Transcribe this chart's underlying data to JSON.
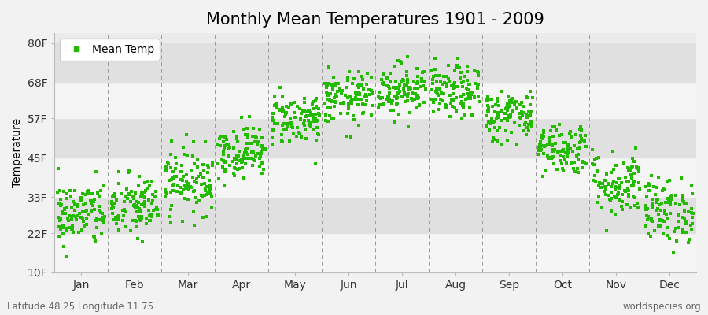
{
  "title": "Monthly Mean Temperatures 1901 - 2009",
  "ylabel": "Temperature",
  "xlabel_months": [
    "Jan",
    "Feb",
    "Mar",
    "Apr",
    "May",
    "Jun",
    "Jul",
    "Aug",
    "Sep",
    "Oct",
    "Nov",
    "Dec"
  ],
  "ytick_labels": [
    "10F",
    "22F",
    "33F",
    "45F",
    "57F",
    "68F",
    "80F"
  ],
  "ytick_values": [
    10,
    22,
    33,
    45,
    57,
    68,
    80
  ],
  "ylim": [
    10,
    83
  ],
  "dot_color": "#22bb00",
  "dot_size": 6,
  "background_color": "#f2f2f2",
  "plot_bg_color": "#ebebeb",
  "band_color_light": "#f5f5f5",
  "band_color_dark": "#e0e0e0",
  "legend_label": "Mean Temp",
  "footer_left": "Latitude 48.25 Longitude 11.75",
  "footer_right": "worldspecies.org",
  "title_fontsize": 15,
  "axis_fontsize": 10,
  "footer_fontsize": 8.5,
  "n_years": 109,
  "monthly_means_F": [
    28,
    30,
    38,
    47,
    57,
    63,
    66,
    65,
    58,
    48,
    37,
    29
  ],
  "monthly_stds_F": [
    5,
    5,
    5,
    4,
    4,
    4,
    4,
    4,
    4,
    4,
    5,
    5
  ]
}
